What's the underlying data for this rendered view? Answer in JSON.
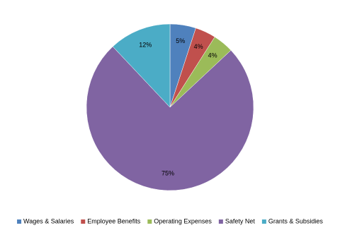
{
  "chart_data": {
    "type": "pie",
    "categories": [
      "Wages & Salaries",
      "Employee Benefits",
      "Operating Expenses",
      "Safety Net",
      "Grants & Subsidies"
    ],
    "values": [
      5,
      4,
      4,
      75,
      12
    ],
    "value_labels": [
      "5%",
      "4%",
      "4%",
      "75%",
      "12%"
    ],
    "colors": [
      "#4f81bd",
      "#c0504d",
      "#9bbb59",
      "#8064a2",
      "#4bacc6"
    ],
    "legend": "bottom"
  }
}
